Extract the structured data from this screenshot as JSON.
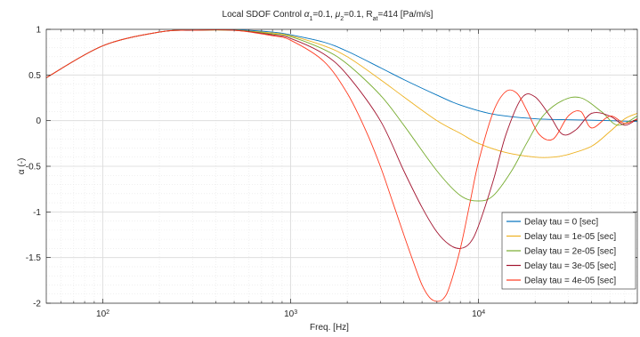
{
  "chart_data": {
    "type": "line",
    "title_parts": [
      "Local SDOF Control ",
      "α",
      "1",
      "=0.1, ",
      "μ",
      "2",
      "=0.1, R",
      "at",
      "=414 [Pa/m/s]"
    ],
    "xlabel": "Freq. [Hz]",
    "ylabel": "α (-)",
    "x_scale": "log",
    "xlim": [
      50,
      70000
    ],
    "ylim": [
      -2,
      1
    ],
    "x_ticks": [
      {
        "value": 100,
        "base": "10",
        "exp": "2"
      },
      {
        "value": 1000,
        "base": "10",
        "exp": "3"
      },
      {
        "value": 10000,
        "base": "10",
        "exp": "4"
      }
    ],
    "y_ticks": [
      1,
      0.5,
      0,
      -0.5,
      -1,
      -1.5,
      -2
    ],
    "y_tick_labels": [
      "1",
      "0.5",
      "0",
      "-0.5",
      "-1",
      "-1.5",
      "-2"
    ],
    "grid": true,
    "minor_grid": true,
    "legend_position": "bottom-right",
    "series": [
      {
        "name": "Delay tau = 0 [sec]",
        "color": "#0072BD",
        "x": [
          50,
          100,
          200,
          300,
          500,
          800,
          1000,
          1500,
          2000,
          3000,
          4000,
          6000,
          8000,
          12000,
          20000,
          30000,
          50000,
          70000
        ],
        "y": [
          0.47,
          0.82,
          0.97,
          0.99,
          0.995,
          0.97,
          0.94,
          0.86,
          0.76,
          0.58,
          0.45,
          0.28,
          0.17,
          0.07,
          0.02,
          0.01,
          0.0,
          -0.01
        ]
      },
      {
        "name": "Delay tau = 1e-05 [sec]",
        "color": "#EDB120",
        "x": [
          50,
          100,
          200,
          300,
          500,
          800,
          1000,
          1500,
          2000,
          3000,
          4000,
          6000,
          8000,
          10000,
          14000,
          20000,
          25000,
          30000,
          40000,
          50000,
          60000,
          70000
        ],
        "y": [
          0.47,
          0.82,
          0.97,
          0.99,
          0.99,
          0.96,
          0.93,
          0.82,
          0.7,
          0.45,
          0.26,
          0.0,
          -0.14,
          -0.25,
          -0.35,
          -0.4,
          -0.4,
          -0.37,
          -0.28,
          -0.12,
          0.02,
          0.08
        ]
      },
      {
        "name": "Delay tau = 2e-05 [sec]",
        "color": "#77AC30",
        "x": [
          50,
          100,
          200,
          300,
          500,
          800,
          1000,
          1500,
          2000,
          3000,
          4000,
          6000,
          8000,
          10000,
          12000,
          15000,
          18000,
          22000,
          28000,
          35000,
          45000,
          55000,
          70000
        ],
        "y": [
          0.47,
          0.82,
          0.97,
          0.99,
          0.99,
          0.95,
          0.92,
          0.78,
          0.62,
          0.28,
          -0.05,
          -0.55,
          -0.82,
          -0.88,
          -0.82,
          -0.55,
          -0.25,
          0.05,
          0.22,
          0.25,
          0.1,
          -0.05,
          0.05
        ]
      },
      {
        "name": "Delay tau = 3e-05 [sec]",
        "color": "#A2142F",
        "x": [
          50,
          100,
          200,
          300,
          500,
          800,
          1000,
          1500,
          2000,
          3000,
          4000,
          5000,
          6000,
          7000,
          8000,
          9000,
          10000,
          12000,
          14000,
          17000,
          20000,
          24000,
          28000,
          33000,
          40000,
          50000,
          60000,
          70000
        ],
        "y": [
          0.47,
          0.82,
          0.97,
          0.99,
          0.99,
          0.94,
          0.9,
          0.73,
          0.5,
          0.0,
          -0.55,
          -0.95,
          -1.22,
          -1.36,
          -1.4,
          -1.34,
          -1.15,
          -0.65,
          -0.15,
          0.25,
          0.26,
          0.05,
          -0.15,
          -0.1,
          0.08,
          0.05,
          -0.05,
          0.02
        ]
      },
      {
        "name": "Delay tau = 4e-05 [sec]",
        "color": "#FF3A1F",
        "x": [
          50,
          100,
          200,
          300,
          500,
          800,
          1000,
          1500,
          2000,
          2500,
          3000,
          3500,
          4000,
          4500,
          5000,
          5500,
          6000,
          6500,
          7000,
          8000,
          9000,
          10000,
          12000,
          14000,
          16000,
          18000,
          21000,
          25000,
          30000,
          35000,
          40000,
          50000,
          60000,
          70000
        ],
        "y": [
          0.47,
          0.82,
          0.97,
          0.99,
          0.99,
          0.93,
          0.88,
          0.65,
          0.3,
          -0.1,
          -0.5,
          -0.9,
          -1.25,
          -1.55,
          -1.8,
          -1.94,
          -1.98,
          -1.95,
          -1.82,
          -1.4,
          -0.9,
          -0.45,
          0.1,
          0.32,
          0.3,
          0.12,
          -0.15,
          -0.2,
          0.05,
          0.1,
          -0.08,
          0.05,
          -0.03,
          0.02
        ]
      }
    ]
  }
}
